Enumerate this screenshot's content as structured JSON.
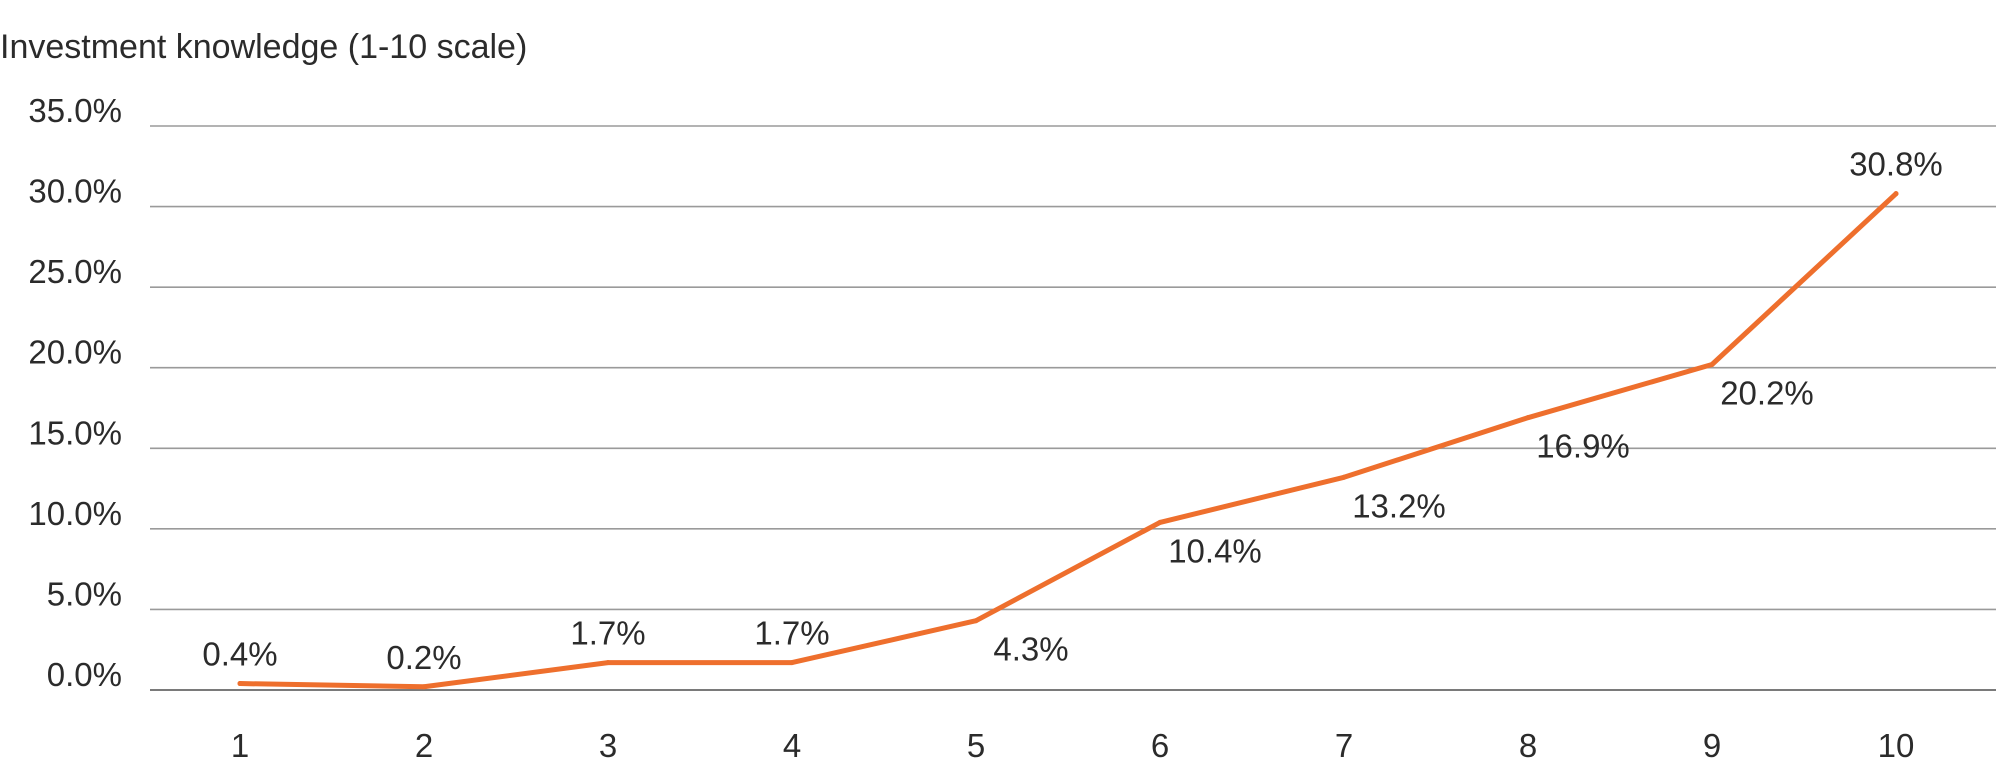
{
  "chart_data": {
    "type": "line",
    "title": "",
    "ylabel": "Investment knowledge (1-10 scale)",
    "xlabel": "",
    "categories": [
      "1",
      "2",
      "3",
      "4",
      "5",
      "6",
      "7",
      "8",
      "9",
      "10"
    ],
    "series": [
      {
        "values": [
          0.4,
          0.2,
          1.7,
          1.7,
          4.3,
          10.4,
          13.2,
          16.9,
          20.2,
          30.8
        ],
        "data_labels": [
          "0.4%",
          "0.2%",
          "1.7%",
          "1.7%",
          "4.3%",
          "10.4%",
          "13.2%",
          "16.9%",
          "20.2%",
          "30.8%"
        ],
        "color": "#ee6f2d"
      }
    ],
    "ylim": [
      0,
      35
    ],
    "yticks": [
      0,
      5,
      10,
      15,
      20,
      25,
      30,
      35
    ],
    "ytick_labels": [
      "0.0%",
      "5.0%",
      "10.0%",
      "15.0%",
      "20.0%",
      "25.0%",
      "30.0%",
      "35.0%"
    ],
    "grid": true,
    "legend": "none"
  }
}
